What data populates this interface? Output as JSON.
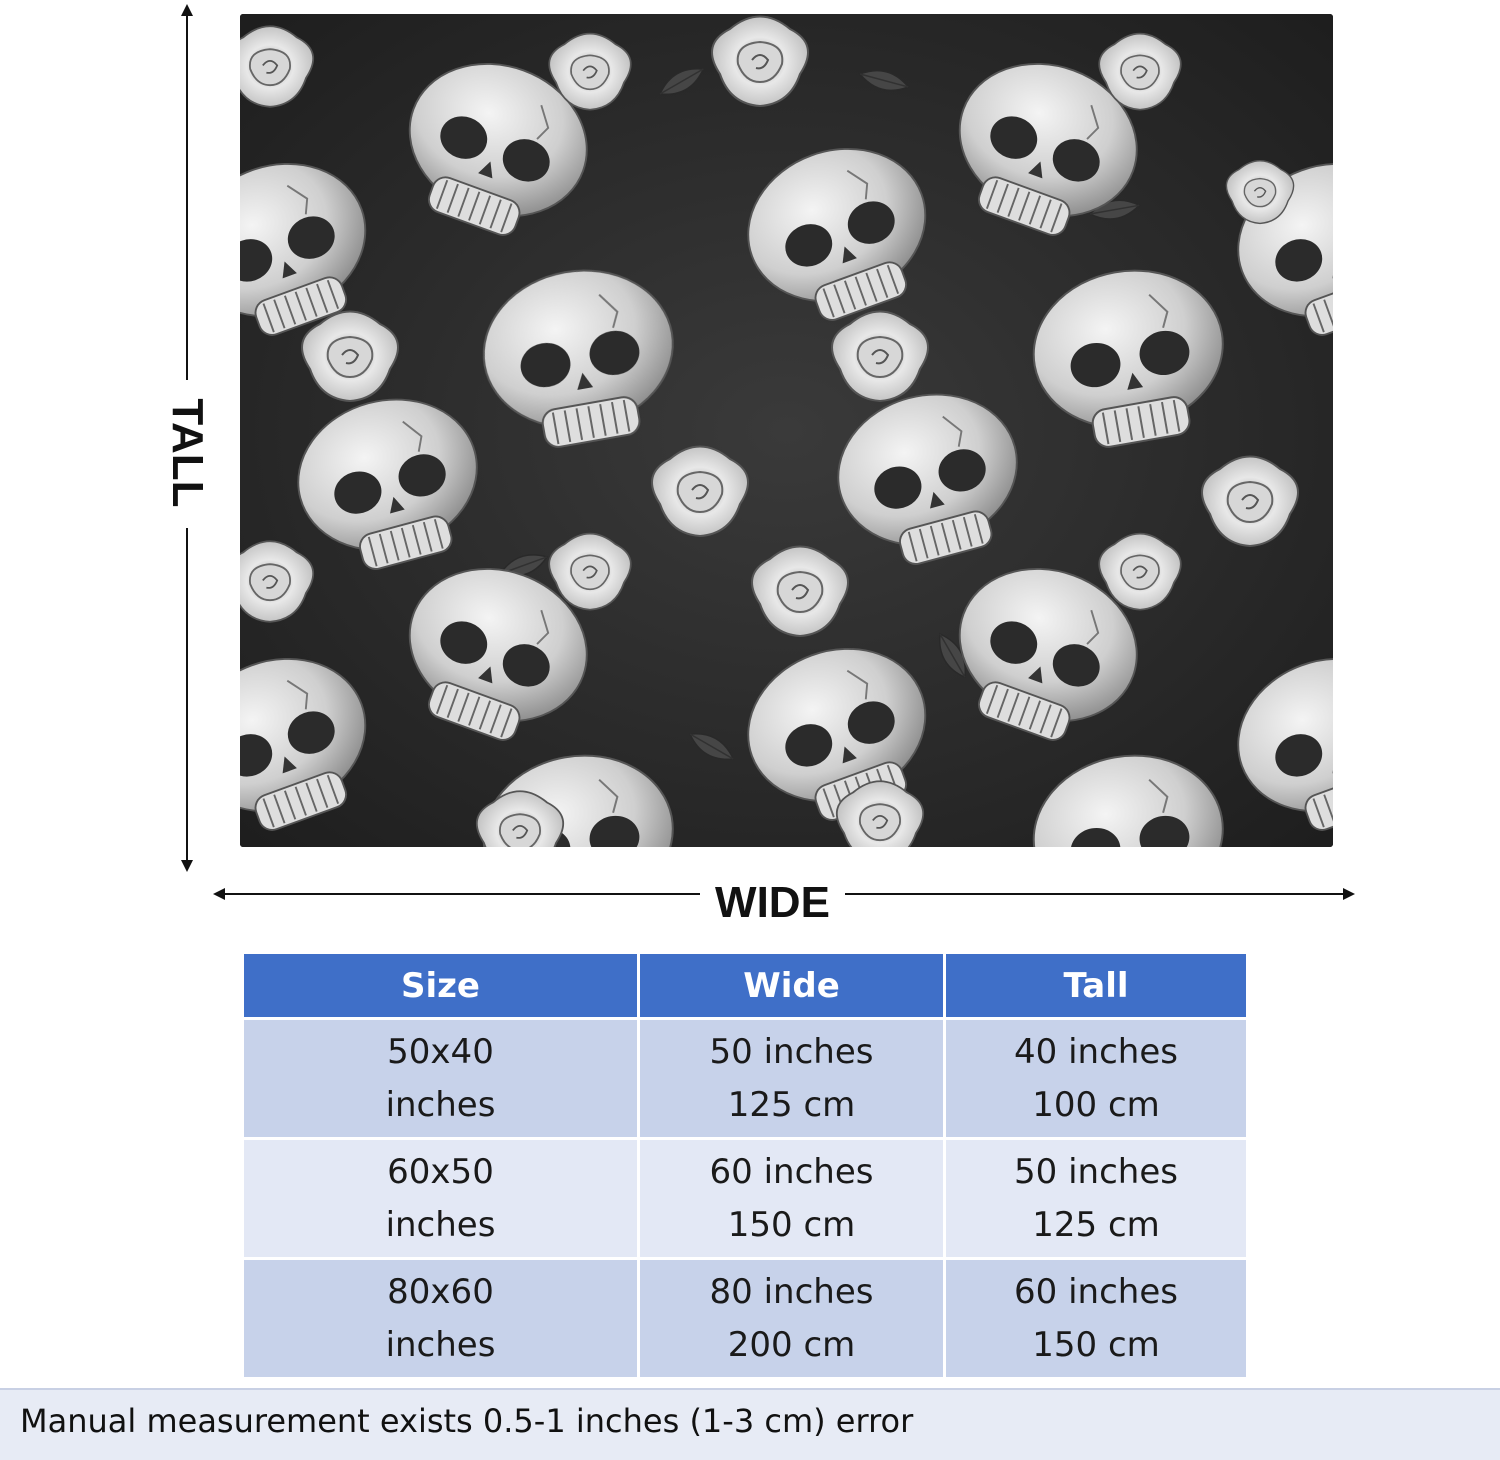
{
  "dimension_labels": {
    "tall": "TALL",
    "wide": "WIDE"
  },
  "size_table": {
    "headers": [
      "Size",
      "Wide",
      "Tall"
    ],
    "rows": [
      {
        "size": [
          "50x40",
          "inches"
        ],
        "wide": [
          "50 inches",
          "125 cm"
        ],
        "tall": [
          "40 inches",
          "100 cm"
        ]
      },
      {
        "size": [
          "60x50",
          "inches"
        ],
        "wide": [
          "60 inches",
          "150 cm"
        ],
        "tall": [
          "50 inches",
          "125 cm"
        ]
      },
      {
        "size": [
          "80x60",
          "inches"
        ],
        "wide": [
          "80 inches",
          "200 cm"
        ],
        "tall": [
          "60 inches",
          "150 cm"
        ]
      }
    ],
    "colors": {
      "header_bg": "#3f6fc8",
      "row_dark": "#c7d2ea",
      "row_light": "#e3e8f5"
    }
  },
  "note": "Manual measurement exists 0.5-1 inches (1-3 cm) error"
}
